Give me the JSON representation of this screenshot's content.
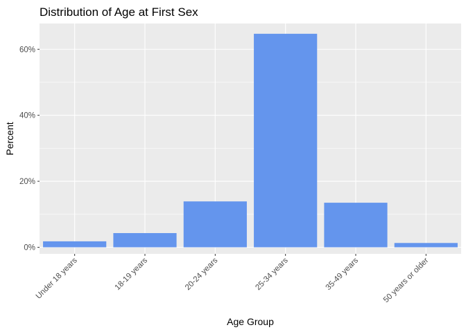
{
  "chart_data": {
    "type": "bar",
    "title": "Distribution of Age at First Sex",
    "xlabel": "Age Group",
    "ylabel": "Percent",
    "categories": [
      "Under 18 years",
      "18-19 years",
      "20-24 years",
      "25-34 years",
      "35-49 years",
      "50 years or older"
    ],
    "values": [
      1.8,
      4.3,
      13.9,
      64.7,
      13.5,
      1.3
    ],
    "ylim": [
      0,
      68
    ],
    "yticks": [
      0,
      20,
      40,
      60
    ],
    "ytick_labels": [
      "0%",
      "20%",
      "40%",
      "60%"
    ],
    "grid": true,
    "legend": "none",
    "colors": {
      "bar": "#6495ED",
      "panel": "#EBEBEB",
      "grid": "#FFFFFF"
    }
  }
}
